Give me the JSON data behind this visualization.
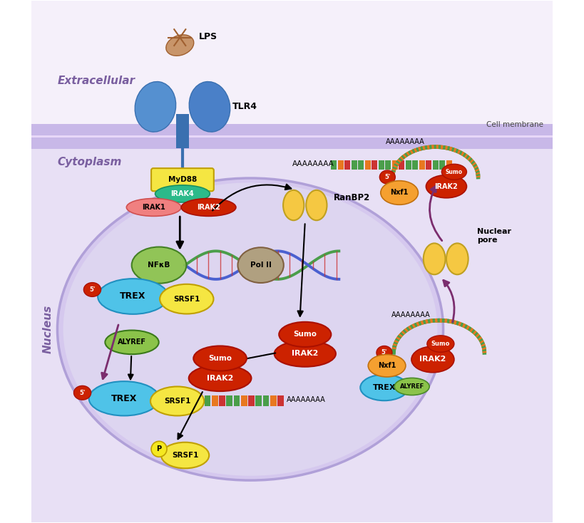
{
  "background_color": "#ffffff",
  "extracellular_color": "#f5f0fa",
  "cytoplasm_color": "#e8e0f5",
  "nucleus_color": "#d5c8ee",
  "nucleus_inner_color": "#ddd5f0",
  "membrane_color": "#c8b8e8",
  "labels": {
    "extracellular": "Extracellular",
    "cytoplasm": "Cytoplasm",
    "nucleus": "Nucleus",
    "cell_membrane": "Cell membrane",
    "LPS": "LPS",
    "TLR4": "TLR4",
    "MyD88": "MyD88",
    "IRAK4": "IRAK4",
    "IRAK1": "IRAK1",
    "IRAK2": "IRAK2",
    "RanBP2": "RanBP2",
    "NFkB": "NFκB",
    "PolII": "Pol II",
    "TREX": "TREX",
    "SRSF1": "SRSF1",
    "ALYREF": "ALYREF",
    "Sumo": "Sumo",
    "Nxf1": "Nxf1",
    "Nuclear_pore": "Nuclear\npore",
    "AAAAAAAA": "AAAAAAAA",
    "five_prime": "5'"
  },
  "colors": {
    "MyD88": "#f5e642",
    "IRAK4": "#2bba8a",
    "IRAK1": "#f08080",
    "IRAK2_red": "#cc2200",
    "TREX": "#4fc3e8",
    "SRSF1": "#f5e642",
    "ALYREF": "#8bc34a",
    "Sumo": "#cc2200",
    "NFkB": "#8bc34a",
    "Nxf1": "#f5a030",
    "RanBP2": "#f5c842",
    "five_prime": "#cc2200",
    "nuclear_pore": "#f5c842",
    "LPS_color": "#c8956a",
    "TLR4_color": "#4a90d9",
    "purple_arrow": "#7b2d6e",
    "DNA_green": "#4a9e4a",
    "DNA_blue": "#4a60d0",
    "DNA_red": "#cc3333",
    "mRNA_green": "#4a9e4a",
    "mRNA_orange": "#e87820",
    "PolII_color": "#b0a080",
    "membrane": "#c8b8e8"
  }
}
